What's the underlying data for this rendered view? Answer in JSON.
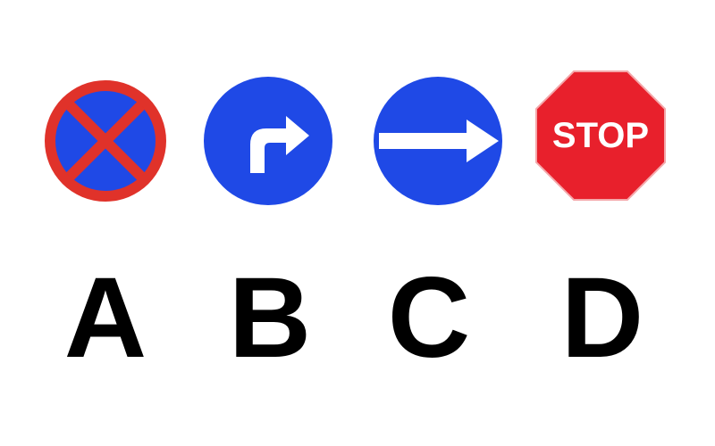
{
  "colors": {
    "blue": "#1f49e6",
    "red": "#e0322a",
    "stop_red": "#e8202c",
    "white": "#ffffff",
    "black": "#000000"
  },
  "signs": [
    {
      "id": "A",
      "label": "A",
      "icon": "no-stopping-sign-icon"
    },
    {
      "id": "B",
      "label": "B",
      "icon": "turn-right-sign-icon"
    },
    {
      "id": "C",
      "label": "C",
      "icon": "one-way-right-sign-icon"
    },
    {
      "id": "D",
      "label": "D",
      "icon": "stop-sign-icon",
      "text": "STOP"
    }
  ]
}
